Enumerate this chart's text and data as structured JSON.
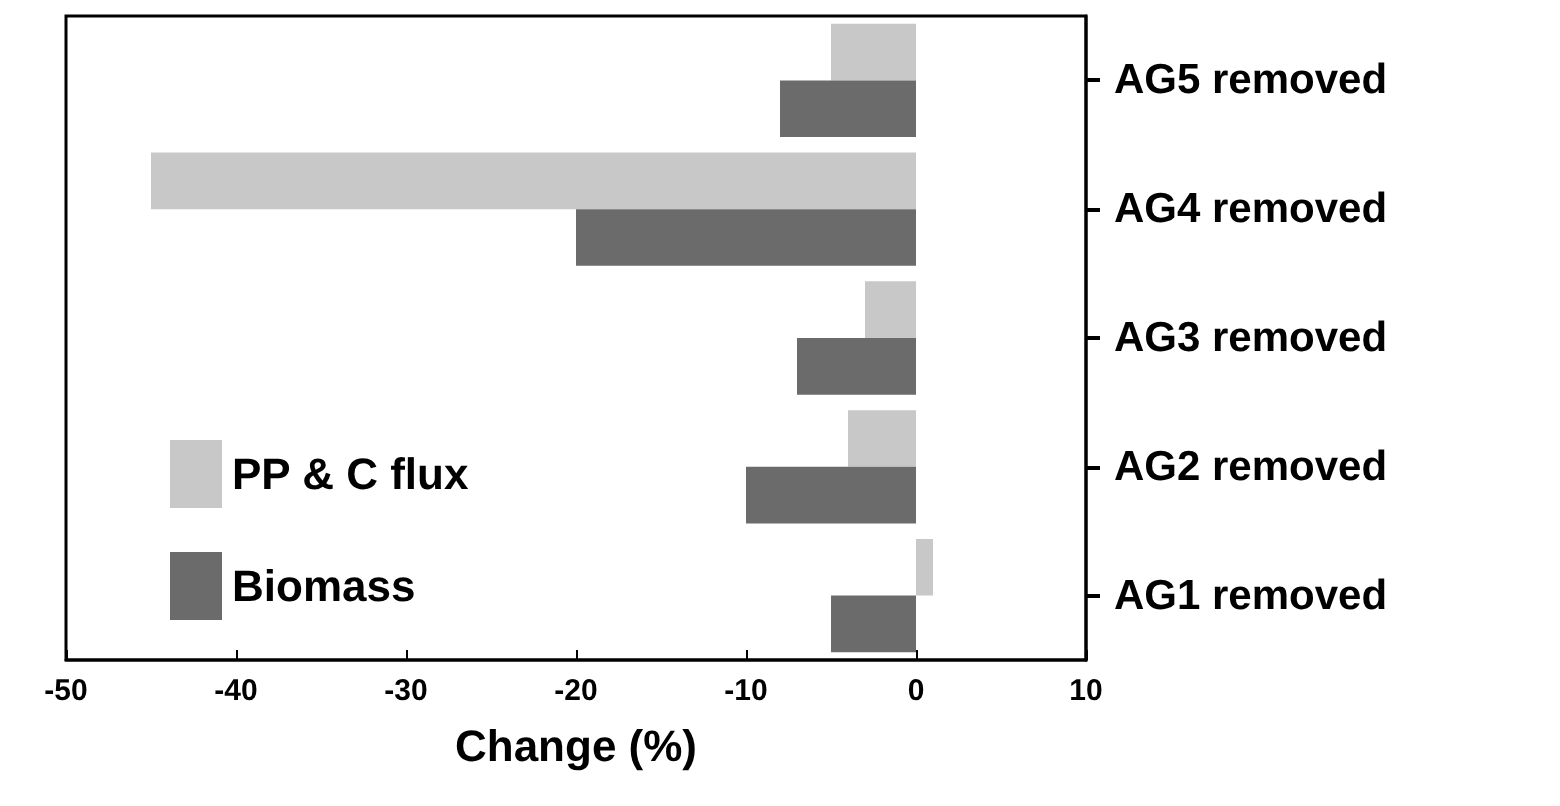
{
  "chart_data": {
    "type": "bar",
    "orientation": "horizontal",
    "categories": [
      "AG5 removed",
      "AG4 removed",
      "AG3 removed",
      "AG2 removed",
      "AG1 removed"
    ],
    "series": [
      {
        "name": "PP & C flux",
        "color": "#c8c8c8",
        "values": [
          -5,
          -45,
          -3,
          -4,
          1
        ]
      },
      {
        "name": "Biomass",
        "color": "#6b6b6b",
        "values": [
          -8,
          -20,
          -7,
          -10,
          -5
        ]
      }
    ],
    "xlabel": "Change (%)",
    "xlim": [
      -50,
      10
    ],
    "xticks": [
      -50,
      -40,
      -30,
      -20,
      -10,
      0,
      10
    ],
    "legend": "bottom left"
  }
}
